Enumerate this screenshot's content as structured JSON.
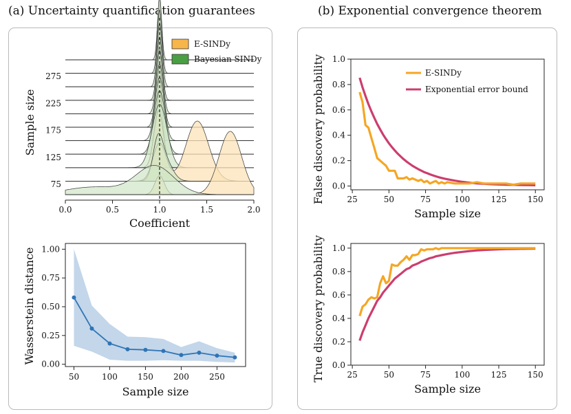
{
  "titles": {
    "left": "(a) Uncertainty quantification guarantees",
    "right": "(b) Exponential convergence theorem"
  },
  "colors": {
    "esindy": "#f5a623",
    "esindy_fill": "#fbe3b8",
    "bayes": "#2e8b2e",
    "bayes_fill": "#cfe6c6",
    "bound": "#cc3d6e",
    "wass_line": "#2f74b5",
    "wass_band": "#b9cfe6"
  },
  "chart_data": [
    {
      "id": "ridgeline",
      "type": "area",
      "title": "",
      "xlabel": "Coefficient",
      "ylabel": "Sample size",
      "xlim": [
        0.0,
        2.0
      ],
      "xticks": [
        "0.0",
        "0.5",
        "1.0",
        "1.5",
        "2.0"
      ],
      "yticks": [
        "75",
        "125",
        "175",
        "225",
        "275"
      ],
      "reference_line": 1.0,
      "legend": [
        "E-SINDy",
        "Bayesian SINDy"
      ],
      "sample_sizes": [
        50,
        75,
        100,
        125,
        150,
        175,
        200,
        225,
        250,
        275,
        300
      ],
      "series": [
        {
          "name": "E-SINDy",
          "components_by_sample_size": [
            [
              [
                1.0,
                0.05,
                0.3
              ],
              [
                1.75,
                0.12,
                1.0
              ]
            ],
            [
              [
                1.0,
                0.07,
                0.6
              ],
              [
                1.4,
                0.12,
                0.95
              ]
            ],
            [
              [
                0.99,
                0.05,
                0.9
              ]
            ],
            [
              [
                1.0,
                0.03,
                1.0
              ]
            ],
            [
              [
                1.0,
                0.025,
                1.0
              ]
            ],
            [
              [
                1.0,
                0.02,
                1.0
              ]
            ],
            [
              [
                1.0,
                0.02,
                1.0
              ]
            ],
            [
              [
                1.0,
                0.015,
                1.0
              ]
            ],
            [
              [
                1.0,
                0.013,
                1.0
              ]
            ],
            [
              [
                1.0,
                0.012,
                1.0
              ]
            ],
            [
              [
                1.0,
                0.01,
                1.0
              ]
            ]
          ]
        },
        {
          "name": "Bayesian SINDy",
          "components_by_sample_size": [
            [
              [
                0.95,
                0.2,
                0.45
              ],
              [
                0.3,
                0.3,
                0.12
              ]
            ],
            [
              [
                0.98,
                0.05,
                0.5
              ],
              [
                1.05,
                0.08,
                0.35
              ]
            ],
            [
              [
                1.0,
                0.08,
                1.0
              ]
            ],
            [
              [
                1.0,
                0.06,
                1.0
              ]
            ],
            [
              [
                1.0,
                0.05,
                1.0
              ]
            ],
            [
              [
                1.0,
                0.04,
                1.0
              ]
            ],
            [
              [
                1.0,
                0.035,
                1.0
              ]
            ],
            [
              [
                1.0,
                0.03,
                1.0
              ]
            ],
            [
              [
                1.0,
                0.028,
                1.0
              ]
            ],
            [
              [
                1.0,
                0.025,
                1.0
              ]
            ],
            [
              [
                1.0,
                0.022,
                1.0
              ]
            ]
          ]
        }
      ]
    },
    {
      "id": "wasserstein",
      "type": "line",
      "xlabel": "Sample size",
      "ylabel": "Wasserstein distance",
      "xlim": [
        38,
        290
      ],
      "ylim": [
        -0.02,
        1.05
      ],
      "xticks": [
        "50",
        "100",
        "150",
        "200",
        "250"
      ],
      "yticks": [
        "0.00",
        "0.25",
        "0.50",
        "0.75",
        "1.00"
      ],
      "x": [
        50,
        75,
        100,
        125,
        150,
        175,
        200,
        225,
        250,
        275
      ],
      "series": [
        {
          "name": "mean",
          "values": [
            0.58,
            0.31,
            0.18,
            0.13,
            0.125,
            0.115,
            0.08,
            0.1,
            0.075,
            0.06
          ]
        },
        {
          "name": "upper",
          "values": [
            1.0,
            0.51,
            0.35,
            0.24,
            0.235,
            0.22,
            0.15,
            0.2,
            0.14,
            0.1
          ]
        },
        {
          "name": "lower",
          "values": [
            0.16,
            0.11,
            0.04,
            0.03,
            0.03,
            0.035,
            0.03,
            0.03,
            0.02,
            0.015
          ]
        }
      ]
    },
    {
      "id": "fdp",
      "type": "line",
      "xlabel": "Sample size",
      "ylabel": "False discovery probability",
      "xlim": [
        24,
        156
      ],
      "ylim": [
        -0.03,
        1.0
      ],
      "xticks": [
        "25",
        "50",
        "75",
        "100",
        "125",
        "150"
      ],
      "yticks": [
        "0.0",
        "0.2",
        "0.4",
        "0.6",
        "0.8",
        "1.0"
      ],
      "legend": [
        "E-SINDy",
        "Exponential error bound"
      ],
      "x": [
        30,
        32,
        34,
        36,
        38,
        40,
        42,
        44,
        46,
        48,
        50,
        52,
        54,
        56,
        58,
        60,
        62,
        64,
        66,
        68,
        70,
        72,
        74,
        76,
        78,
        80,
        82,
        84,
        86,
        88,
        90,
        95,
        100,
        105,
        110,
        115,
        120,
        125,
        130,
        135,
        140,
        145,
        150
      ],
      "series": [
        {
          "name": "E-SINDy",
          "values": [
            0.74,
            0.66,
            0.48,
            0.46,
            0.38,
            0.3,
            0.22,
            0.2,
            0.18,
            0.16,
            0.12,
            0.12,
            0.12,
            0.06,
            0.06,
            0.06,
            0.07,
            0.05,
            0.06,
            0.05,
            0.04,
            0.05,
            0.03,
            0.04,
            0.02,
            0.03,
            0.04,
            0.02,
            0.03,
            0.02,
            0.03,
            0.02,
            0.02,
            0.02,
            0.03,
            0.02,
            0.02,
            0.02,
            0.02,
            0.01,
            0.02,
            0.02,
            0.02
          ]
        },
        {
          "name": "Exponential error bound",
          "values": [
            0.853,
            0.777,
            0.709,
            0.646,
            0.589,
            0.537,
            0.489,
            0.446,
            0.406,
            0.37,
            0.337,
            0.307,
            0.28,
            0.255,
            0.233,
            0.212,
            0.193,
            0.176,
            0.16,
            0.146,
            0.133,
            0.121,
            0.11,
            0.101,
            0.092,
            0.084,
            0.076,
            0.069,
            0.063,
            0.058,
            0.053,
            0.042,
            0.033,
            0.026,
            0.021,
            0.017,
            0.014,
            0.012,
            0.01,
            0.009,
            0.008,
            0.007,
            0.006
          ]
        }
      ]
    },
    {
      "id": "tdp",
      "type": "line",
      "xlabel": "Sample size",
      "ylabel": "True discovery probability",
      "xlim": [
        24,
        156
      ],
      "ylim": [
        0.0,
        1.04
      ],
      "xticks": [
        "25",
        "50",
        "75",
        "100",
        "125",
        "150"
      ],
      "yticks": [
        "0.0",
        "0.2",
        "0.4",
        "0.6",
        "0.8",
        "1.0"
      ],
      "x": [
        30,
        32,
        34,
        36,
        38,
        40,
        42,
        44,
        46,
        48,
        50,
        52,
        54,
        56,
        58,
        60,
        62,
        64,
        66,
        68,
        70,
        72,
        74,
        76,
        78,
        80,
        82,
        84,
        86,
        88,
        90,
        95,
        100,
        105,
        110,
        115,
        120,
        125,
        130,
        135,
        140,
        145,
        150
      ],
      "series": [
        {
          "name": "E-SINDy",
          "values": [
            0.42,
            0.5,
            0.52,
            0.56,
            0.58,
            0.57,
            0.58,
            0.7,
            0.76,
            0.7,
            0.72,
            0.86,
            0.85,
            0.85,
            0.88,
            0.9,
            0.93,
            0.9,
            0.94,
            0.94,
            0.95,
            0.99,
            0.98,
            0.99,
            0.99,
            0.99,
            1.0,
            0.99,
            1.0,
            1.0,
            1.0,
            1.0,
            1.0,
            1.0,
            1.0,
            1.0,
            1.0,
            1.0,
            1.0,
            1.0,
            1.0,
            1.0,
            1.0
          ]
        },
        {
          "name": "Exponential error bound",
          "values": [
            0.21,
            0.28,
            0.34,
            0.4,
            0.45,
            0.5,
            0.55,
            0.58,
            0.62,
            0.65,
            0.68,
            0.71,
            0.74,
            0.76,
            0.78,
            0.8,
            0.82,
            0.83,
            0.85,
            0.86,
            0.87,
            0.885,
            0.895,
            0.905,
            0.915,
            0.92,
            0.93,
            0.935,
            0.94,
            0.945,
            0.95,
            0.96,
            0.968,
            0.975,
            0.98,
            0.984,
            0.987,
            0.99,
            0.992,
            0.993,
            0.994,
            0.995,
            0.996
          ]
        }
      ]
    }
  ]
}
